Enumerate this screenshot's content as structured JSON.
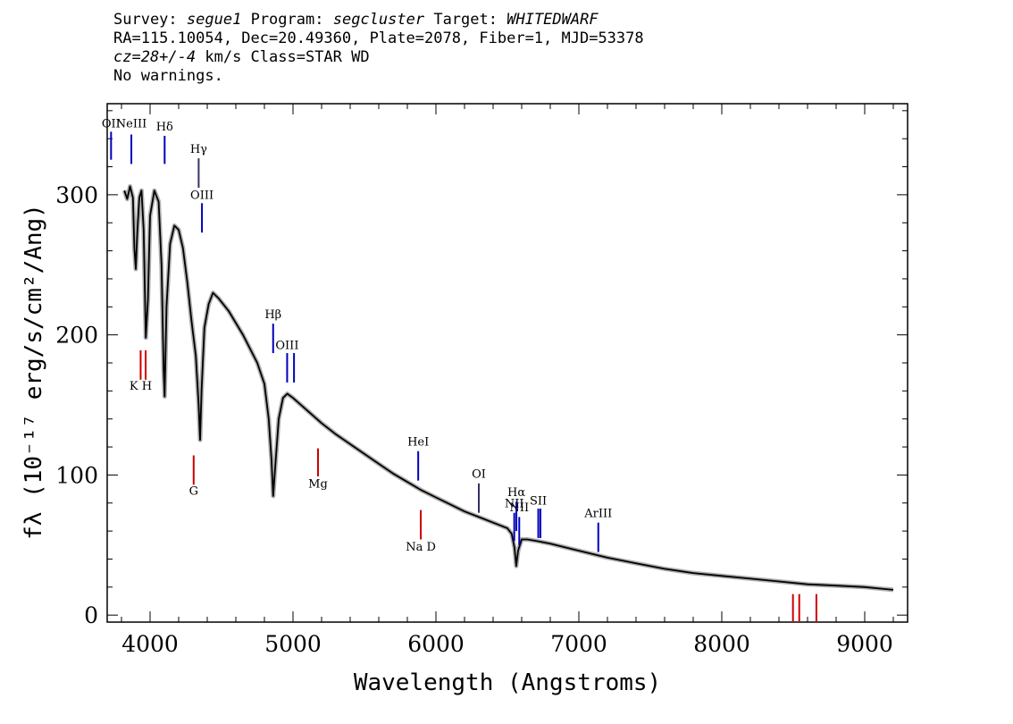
{
  "header": {
    "line1": {
      "survey_label": "Survey:",
      "survey": "segue1",
      "program_label": "Program:",
      "program": "segcluster",
      "target_label": "Target:",
      "target": "WHITEDWARF"
    },
    "line2": "RA=115.10054, Dec=20.49360, Plate=2078, Fiber=1, MJD=53378",
    "line3": {
      "cz": "cz=28+/-4",
      "rest": " km/s Class=STAR WD"
    },
    "line4": "No warnings."
  },
  "chart_data": {
    "type": "line",
    "xlabel": "Wavelength (Angstroms)",
    "ylabel": "fλ (10⁻¹⁷ erg/s/cm²/Ang)",
    "xlim": [
      3700,
      9300
    ],
    "ylim": [
      -5,
      365
    ],
    "x_ticks": [
      4000,
      5000,
      6000,
      7000,
      8000,
      9000
    ],
    "x_tick_labels": [
      "4000",
      "5000",
      "6000",
      "7000",
      "8000",
      "9000"
    ],
    "y_ticks": [
      0,
      100,
      200,
      300
    ],
    "y_tick_labels": [
      "0",
      "100",
      "200",
      "300"
    ],
    "series": [
      {
        "color": "#000000",
        "x": [
          3820,
          3840,
          3860,
          3880,
          3890,
          3900,
          3910,
          3925,
          3940,
          3955,
          3970,
          3985,
          4000,
          4030,
          4060,
          4080,
          4095,
          4102,
          4115,
          4140,
          4170,
          4200,
          4230,
          4260,
          4290,
          4320,
          4340,
          4350,
          4360,
          4380,
          4410,
          4440,
          4480,
          4550,
          4650,
          4750,
          4800,
          4830,
          4850,
          4861,
          4875,
          4900,
          4930,
          4960,
          5000,
          5100,
          5200,
          5300,
          5400,
          5500,
          5600,
          5700,
          5800,
          5900,
          6000,
          6100,
          6200,
          6300,
          6400,
          6450,
          6500,
          6530,
          6550,
          6562,
          6575,
          6600,
          6640,
          6700,
          6800,
          7000,
          7200,
          7400,
          7600,
          7800,
          8000,
          8200,
          8400,
          8600,
          8800,
          9000,
          9100,
          9200
        ],
        "y": [
          303,
          297,
          306,
          298,
          262,
          247,
          272,
          298,
          303,
          275,
          198,
          225,
          285,
          303,
          295,
          250,
          175,
          156,
          220,
          265,
          278,
          275,
          262,
          238,
          210,
          185,
          150,
          125,
          160,
          205,
          222,
          230,
          226,
          217,
          200,
          180,
          165,
          140,
          110,
          85,
          105,
          140,
          155,
          158,
          155,
          146,
          137,
          129,
          122,
          115,
          108,
          101,
          95,
          89,
          84,
          79,
          74,
          70,
          66,
          64,
          62,
          58,
          48,
          35,
          46,
          54,
          54,
          53,
          51,
          46,
          41,
          37,
          33,
          30,
          28,
          26,
          24,
          22,
          21,
          20,
          19,
          18
        ]
      }
    ],
    "lines": [
      {
        "label": "OII",
        "x": 3727,
        "color": "#0000bb",
        "y_from": 325,
        "y_to": 345,
        "label_y": 348
      },
      {
        "label": "NeIII",
        "x": 3869,
        "color": "#0000bb",
        "y_from": 322,
        "y_to": 343,
        "label_y": 348
      },
      {
        "label": "Hδ",
        "x": 4102,
        "color": "#0000bb",
        "y_from": 322,
        "y_to": 342,
        "label_y": 346
      },
      {
        "label": "Hγ",
        "x": 4340,
        "color": "#333366",
        "y_from": 305,
        "y_to": 326,
        "label_y": 330
      },
      {
        "label": "OIII",
        "x": 4363,
        "color": "#0000bb",
        "y_from": 273,
        "y_to": 294,
        "label_y": 297
      },
      {
        "label": "Hβ",
        "x": 4861,
        "color": "#0000bb",
        "y_from": 187,
        "y_to": 208,
        "label_y": 212
      },
      {
        "label": "OIII",
        "x": 4959,
        "color": "#0000bb",
        "y_from": 166,
        "y_to": 187,
        "label_y": 190
      },
      {
        "label": "",
        "x": 5007,
        "color": "#0000bb",
        "y_from": 166,
        "y_to": 187,
        "label_y": 0
      },
      {
        "label": "HeI",
        "x": 5876,
        "color": "#0000bb",
        "y_from": 96,
        "y_to": 117,
        "label_y": 121
      },
      {
        "label": "OI",
        "x": 6300,
        "color": "#333366",
        "y_from": 73,
        "y_to": 94,
        "label_y": 98
      },
      {
        "label": "NII",
        "x": 6548,
        "color": "#0000bb",
        "y_from": 53,
        "y_to": 73,
        "label_y": 77
      },
      {
        "label": "Hα",
        "x": 6563,
        "color": "#0000bb",
        "y_from": 60,
        "y_to": 81,
        "label_y": 85
      },
      {
        "label": "NII",
        "x": 6583,
        "color": "#0000bb",
        "y_from": 50,
        "y_to": 70,
        "label_y": 74
      },
      {
        "label": "SII",
        "x": 6716,
        "color": "#0000bb",
        "y_from": 55,
        "y_to": 76,
        "label_y": 79
      },
      {
        "label": "",
        "x": 6731,
        "color": "#0000bb",
        "y_from": 55,
        "y_to": 76,
        "label_y": 0
      },
      {
        "label": "ArIII",
        "x": 7136,
        "color": "#0000bb",
        "y_from": 45,
        "y_to": 66,
        "label_y": 70
      },
      {
        "label": "K H",
        "x": 3934,
        "color": "#cc0000",
        "y_from": 168,
        "y_to": 189,
        "label_y": 161,
        "below": true
      },
      {
        "label": "",
        "x": 3969,
        "color": "#cc0000",
        "y_from": 168,
        "y_to": 189,
        "label_y": 0,
        "below": true
      },
      {
        "label": "G",
        "x": 4305,
        "color": "#cc0000",
        "y_from": 93,
        "y_to": 114,
        "label_y": 86,
        "below": true
      },
      {
        "label": "Mg",
        "x": 5175,
        "color": "#cc0000",
        "y_from": 99,
        "y_to": 119,
        "label_y": 91,
        "below": true
      },
      {
        "label": "Na D",
        "x": 5894,
        "color": "#cc0000",
        "y_from": 54,
        "y_to": 75,
        "label_y": 46,
        "below": true
      },
      {
        "label": "",
        "x": 8498,
        "color": "#cc0000",
        "y_from": -5,
        "y_to": 15,
        "label_y": 0,
        "below": true
      },
      {
        "label": "",
        "x": 8542,
        "color": "#cc0000",
        "y_from": -5,
        "y_to": 15,
        "label_y": 0,
        "below": true
      },
      {
        "label": "",
        "x": 8662,
        "color": "#cc0000",
        "y_from": -5,
        "y_to": 15,
        "label_y": 0,
        "below": true
      }
    ]
  }
}
